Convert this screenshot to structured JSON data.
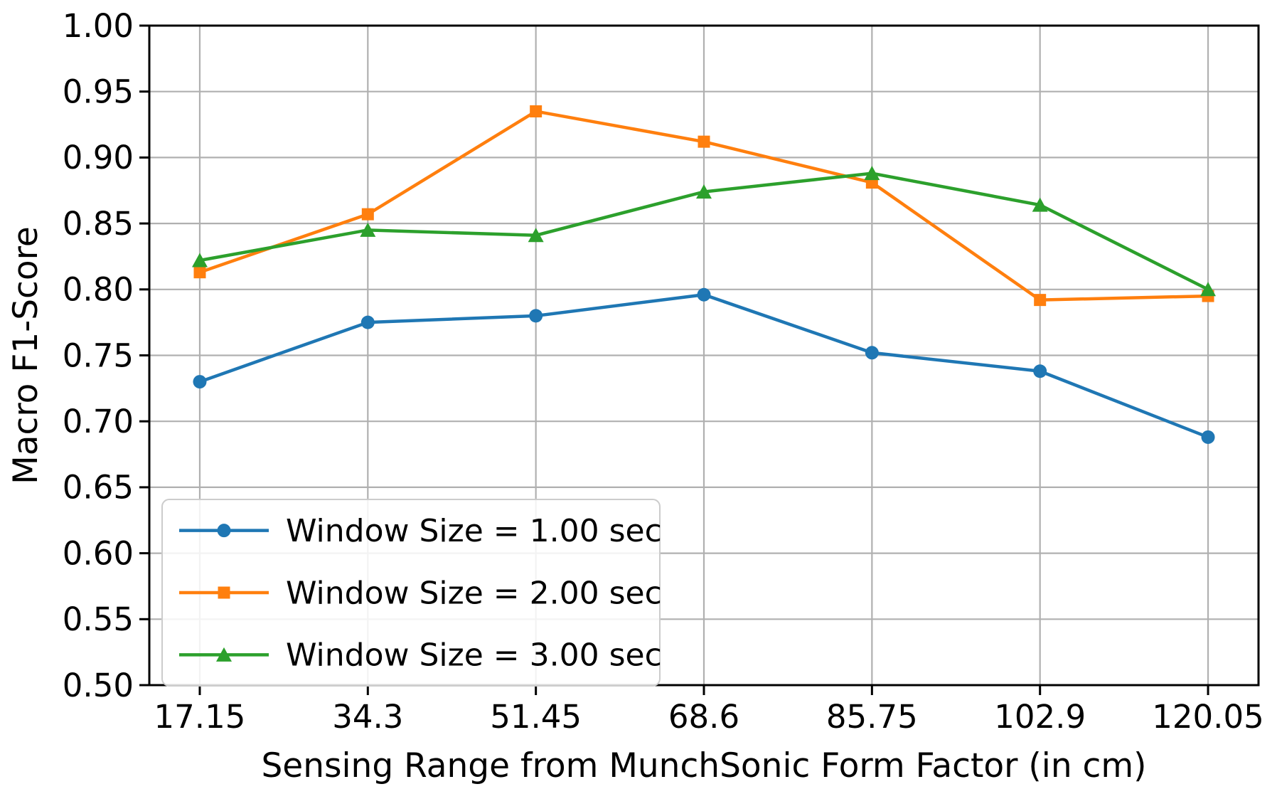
{
  "chart_data": {
    "type": "line",
    "title": "",
    "xlabel": "Sensing Range from MunchSonic Form Factor (in cm)",
    "ylabel": "Macro F1-Score",
    "x": [
      17.15,
      34.3,
      51.45,
      68.6,
      85.75,
      102.9,
      120.05
    ],
    "x_tick_labels": [
      "17.15",
      "34.3",
      "51.45",
      "68.6",
      "85.75",
      "102.9",
      "120.05"
    ],
    "y_ticks": [
      0.5,
      0.55,
      0.6,
      0.65,
      0.7,
      0.75,
      0.8,
      0.85,
      0.9,
      0.95,
      1.0
    ],
    "y_tick_labels": [
      "0.50",
      "0.55",
      "0.60",
      "0.65",
      "0.70",
      "0.75",
      "0.80",
      "0.85",
      "0.90",
      "0.95",
      "1.00"
    ],
    "xlim": [
      12.0,
      125.2
    ],
    "ylim": [
      0.5,
      1.0
    ],
    "grid": true,
    "grid_color": "#b0b0b0",
    "axis_color": "#000000",
    "text_color": "#000000",
    "background": "#ffffff",
    "legend_position": "lower left",
    "legend_border_color": "#cccccc",
    "series": [
      {
        "name": "Window Size = 1.00 sec",
        "marker": "circle",
        "color": "#1f77b4",
        "values": [
          0.73,
          0.775,
          0.78,
          0.796,
          0.752,
          0.738,
          0.688
        ]
      },
      {
        "name": "Window Size = 2.00 sec",
        "marker": "square",
        "color": "#ff7f0e",
        "values": [
          0.813,
          0.857,
          0.935,
          0.912,
          0.881,
          0.792,
          0.795
        ]
      },
      {
        "name": "Window Size = 3.00 sec",
        "marker": "triangle",
        "color": "#2ca02c",
        "values": [
          0.822,
          0.845,
          0.841,
          0.874,
          0.888,
          0.864,
          0.8
        ]
      }
    ]
  }
}
